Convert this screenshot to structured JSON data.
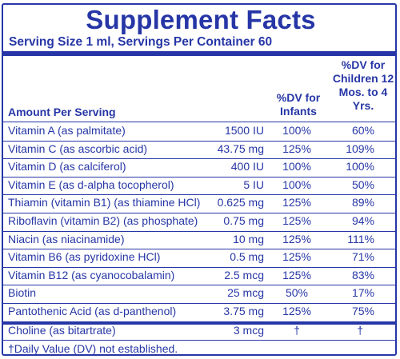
{
  "title": "Supplement Facts",
  "serving": "Serving Size 1 ml, Servings Per Container 60",
  "headers": {
    "amount": "Amount Per Serving",
    "infants": "%DV for Infants",
    "children": "%DV for Children 12 Mos. to 4 Yrs."
  },
  "rows": [
    {
      "name": "Vitamin A (as palmitate)",
      "amount": "1500 IU",
      "infants": "100%",
      "children": "60%"
    },
    {
      "name": "Vitamin C (as ascorbic acid)",
      "amount": "43.75 mg",
      "infants": "125%",
      "children": "109%"
    },
    {
      "name": "Vitamin D (as calciferol)",
      "amount": "400 IU",
      "infants": "100%",
      "children": "100%"
    },
    {
      "name": "Vitamin E (as d-alpha tocopherol)",
      "amount": "5 IU",
      "infants": "100%",
      "children": "50%"
    },
    {
      "name": "Thiamin (vitamin B1) (as thiamine HCl)",
      "amount": "0.625 mg",
      "infants": "125%",
      "children": "89%"
    },
    {
      "name": "Riboflavin (vitamin B2) (as phosphate)",
      "amount": "0.75 mg",
      "infants": "125%",
      "children": "94%"
    },
    {
      "name": "Niacin (as niacinamide)",
      "amount": "10 mg",
      "infants": "125%",
      "children": "111%"
    },
    {
      "name": "Vitamin B6 (as pyridoxine HCl)",
      "amount": "0.5 mg",
      "infants": "125%",
      "children": "71%"
    },
    {
      "name": "Vitamin B12 (as cyanocobalamin)",
      "amount": "2.5 mcg",
      "infants": "125%",
      "children": "83%"
    },
    {
      "name": "Biotin",
      "amount": "25 mcg",
      "infants": "50%",
      "children": "17%"
    },
    {
      "name": "Pantothenic Acid (as d-panthenol)",
      "amount": "3.75 mg",
      "infants": "125%",
      "children": "75%"
    }
  ],
  "choline": {
    "name": "Choline (as bitartrate)",
    "amount": "3 mcg",
    "infants": "†",
    "children": "†"
  },
  "footnote": "†Daily Value (DV) not established."
}
